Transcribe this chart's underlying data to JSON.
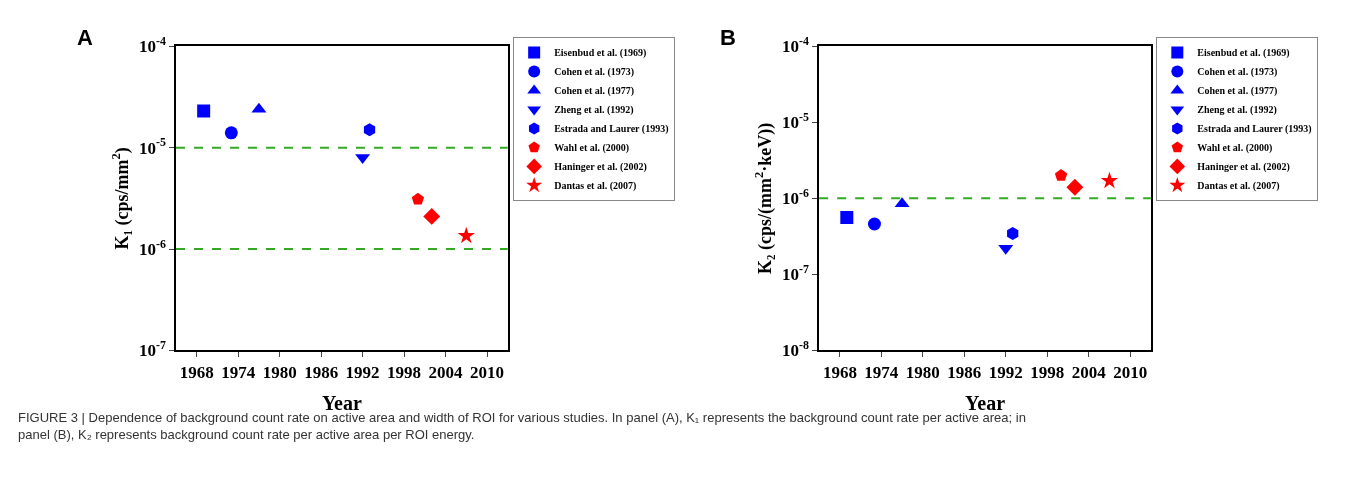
{
  "chart_data": [
    {
      "type": "scatter",
      "title": "A",
      "xlabel": "Year",
      "ylabel": "K₁ (cps/mm$^{2}$)",
      "log": "y",
      "legend": "top right",
      "xlim": [
        1965,
        2013
      ],
      "xticks": [
        1968,
        1974,
        1980,
        1986,
        1992,
        1998,
        2004,
        2010
      ],
      "ylim": [
        1e-07,
        0.0001
      ],
      "yticks": [
        {
          "value": 1e-07,
          "label": "10$^{-7}$"
        },
        {
          "value": 1e-06,
          "label": "10$^{-6}$"
        },
        {
          "value": 1e-05,
          "label": "10$^{-5}$"
        },
        {
          "value": 0.0001,
          "label": "10$^{-4}$"
        }
      ],
      "ref_lines": [
        {
          "axis": "y",
          "value": 1e-05,
          "label": null,
          "color": "#33aa22",
          "line_style": "dashed"
        },
        {
          "axis": "y",
          "value": 1e-06,
          "label": null,
          "color": "#33aa22",
          "line_style": "dashed"
        }
      ],
      "annotations": [
        "FIGURE 3 | Dependence of background count rate on active area and width of ROI for various studies. In panel (A), K₁ represents the background count rate per active area; in panel (B), K₂ represents background count rate per active area per ROI energy."
      ],
      "series": [
        {
          "name": "Eisenbud et al. (1969)",
          "color": "#0000ff",
          "marker": "square",
          "x": [
            1969
          ],
          "values": [
            2.3e-05
          ]
        },
        {
          "name": "Cohen et al. (1973)",
          "color": "#0000ff",
          "marker": "circle",
          "x": [
            1973
          ],
          "values": [
            1.4e-05
          ]
        },
        {
          "name": "Cohen et al. (1977)",
          "color": "#0000ff",
          "marker": "triangle",
          "x": [
            1977
          ],
          "values": [
            2.4e-05
          ]
        },
        {
          "name": "Zheng et al. (1992)",
          "color": "#0000ff",
          "marker": "triangle-down",
          "x": [
            1992
          ],
          "values": [
            8e-06
          ]
        },
        {
          "name": "Estrada and Laurer (1993)",
          "color": "#0000ff",
          "x": [
            1993
          ],
          "values": [
            1.5e-05
          ]
        },
        {
          "name": "Wahl et al. (2000)",
          "color": "#ff0000",
          "x": [
            2000
          ],
          "values": [
            3.1e-06
          ]
        },
        {
          "name": "Haninger et al. (2002)",
          "color": "#ff0000",
          "marker": "diamond",
          "x": [
            2002
          ],
          "values": [
            2.1e-06
          ]
        },
        {
          "name": "Dantas et al. (2007)",
          "color": "#ff0000",
          "marker": "star",
          "x": [
            2007
          ],
          "values": [
            1.35e-06
          ]
        }
      ]
    },
    {
      "type": "scatter",
      "title": "B",
      "xlabel": "Year",
      "ylabel": "K₂ (cps/(mm$^{2}$·keV))",
      "log": "y",
      "legend": "top right",
      "xlim": [
        1965,
        2013
      ],
      "xticks": [
        1968,
        1974,
        1980,
        1986,
        1992,
        1998,
        2004,
        2010
      ],
      "ylim": [
        1e-08,
        0.0001
      ],
      "yticks": [
        {
          "value": 1e-08,
          "label": "10$^{-8}$"
        },
        {
          "value": 1e-07,
          "label": "10$^{-7}$"
        },
        {
          "value": 1e-06,
          "label": "10$^{-6}$"
        },
        {
          "value": 1e-05,
          "label": "10$^{-5}$"
        },
        {
          "value": 0.0001,
          "label": "10$^{-4}$"
        }
      ],
      "ref_lines": [
        {
          "axis": "y",
          "value": 1e-06,
          "label": null,
          "color": "#33aa22",
          "line_style": "dashed"
        }
      ],
      "series": [
        {
          "name": "Eisenbud et al. (1969)",
          "color": "#0000ff",
          "marker": "square",
          "x": [
            1969
          ],
          "values": [
            5.6e-07
          ]
        },
        {
          "name": "Cohen et al. (1973)",
          "color": "#0000ff",
          "marker": "circle",
          "x": [
            1973
          ],
          "values": [
            4.6e-07
          ]
        },
        {
          "name": "Cohen et al. (1977)",
          "color": "#0000ff",
          "marker": "triangle",
          "x": [
            1977
          ],
          "values": [
            8.5e-07
          ]
        },
        {
          "name": "Zheng et al. (1992)",
          "color": "#0000ff",
          "marker": "triangle-down",
          "x": [
            1992
          ],
          "values": [
            2.2e-07
          ]
        },
        {
          "name": "Estrada and Laurer (1993)",
          "color": "#0000ff",
          "x": [
            1993
          ],
          "values": [
            3.45e-07
          ]
        },
        {
          "name": "Wahl et al. (2000)",
          "color": "#ff0000",
          "x": [
            2000
          ],
          "values": [
            2e-06
          ]
        },
        {
          "name": "Haninger et al. (2002)",
          "color": "#ff0000",
          "marker": "diamond",
          "x": [
            2002
          ],
          "values": [
            1.4e-06
          ]
        },
        {
          "name": "Dantas et al. (2007)",
          "color": "#ff0000",
          "marker": "star",
          "x": [
            2007
          ],
          "values": [
            1.7e-06
          ]
        }
      ]
    }
  ]
}
